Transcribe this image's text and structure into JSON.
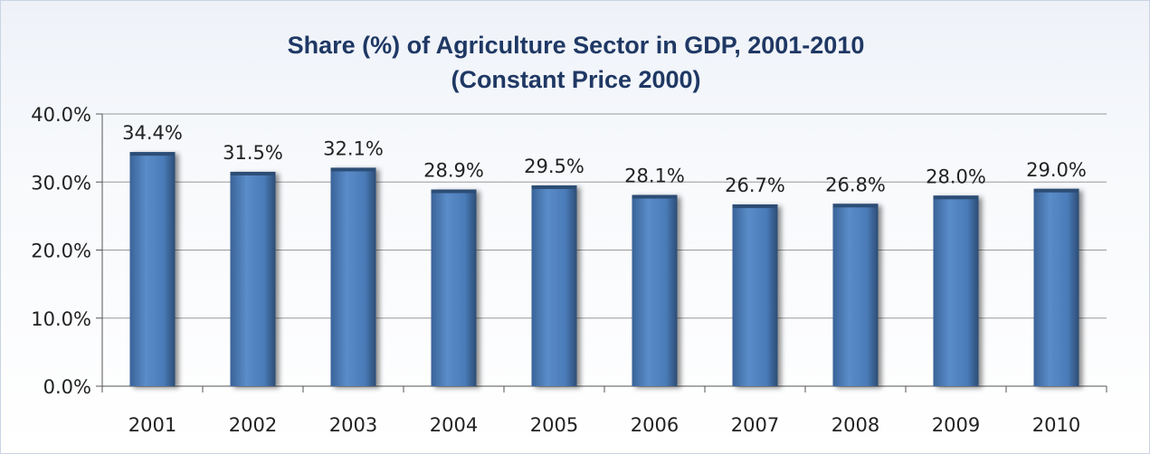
{
  "chart_data": {
    "type": "bar",
    "title": "Share (%) of Agriculture Sector in GDP, 2001-2010",
    "subtitle": "(Constant Price 2000)",
    "xlabel": "",
    "ylabel": "",
    "categories": [
      "2001",
      "2002",
      "2003",
      "2004",
      "2005",
      "2006",
      "2007",
      "2008",
      "2009",
      "2010"
    ],
    "values": [
      34.4,
      31.5,
      32.1,
      28.9,
      29.5,
      28.1,
      26.7,
      26.8,
      28.0,
      29.0
    ],
    "value_labels": [
      "34.4%",
      "31.5%",
      "32.1%",
      "28.9%",
      "29.5%",
      "28.1%",
      "26.7%",
      "26.8%",
      "28.0%",
      "29.0%"
    ],
    "ylim": [
      0,
      40
    ],
    "yticks": [
      0,
      10,
      20,
      30,
      40
    ],
    "ytick_labels": [
      "0.0%",
      "10.0%",
      "20.0%",
      "30.0%",
      "40.0%"
    ],
    "grid": true,
    "legend": "none",
    "colors": {
      "bar": "#4f81bd",
      "bar_dark": "#2c4d75",
      "title": "#1f3864",
      "grid": "#9a9a9a"
    }
  }
}
